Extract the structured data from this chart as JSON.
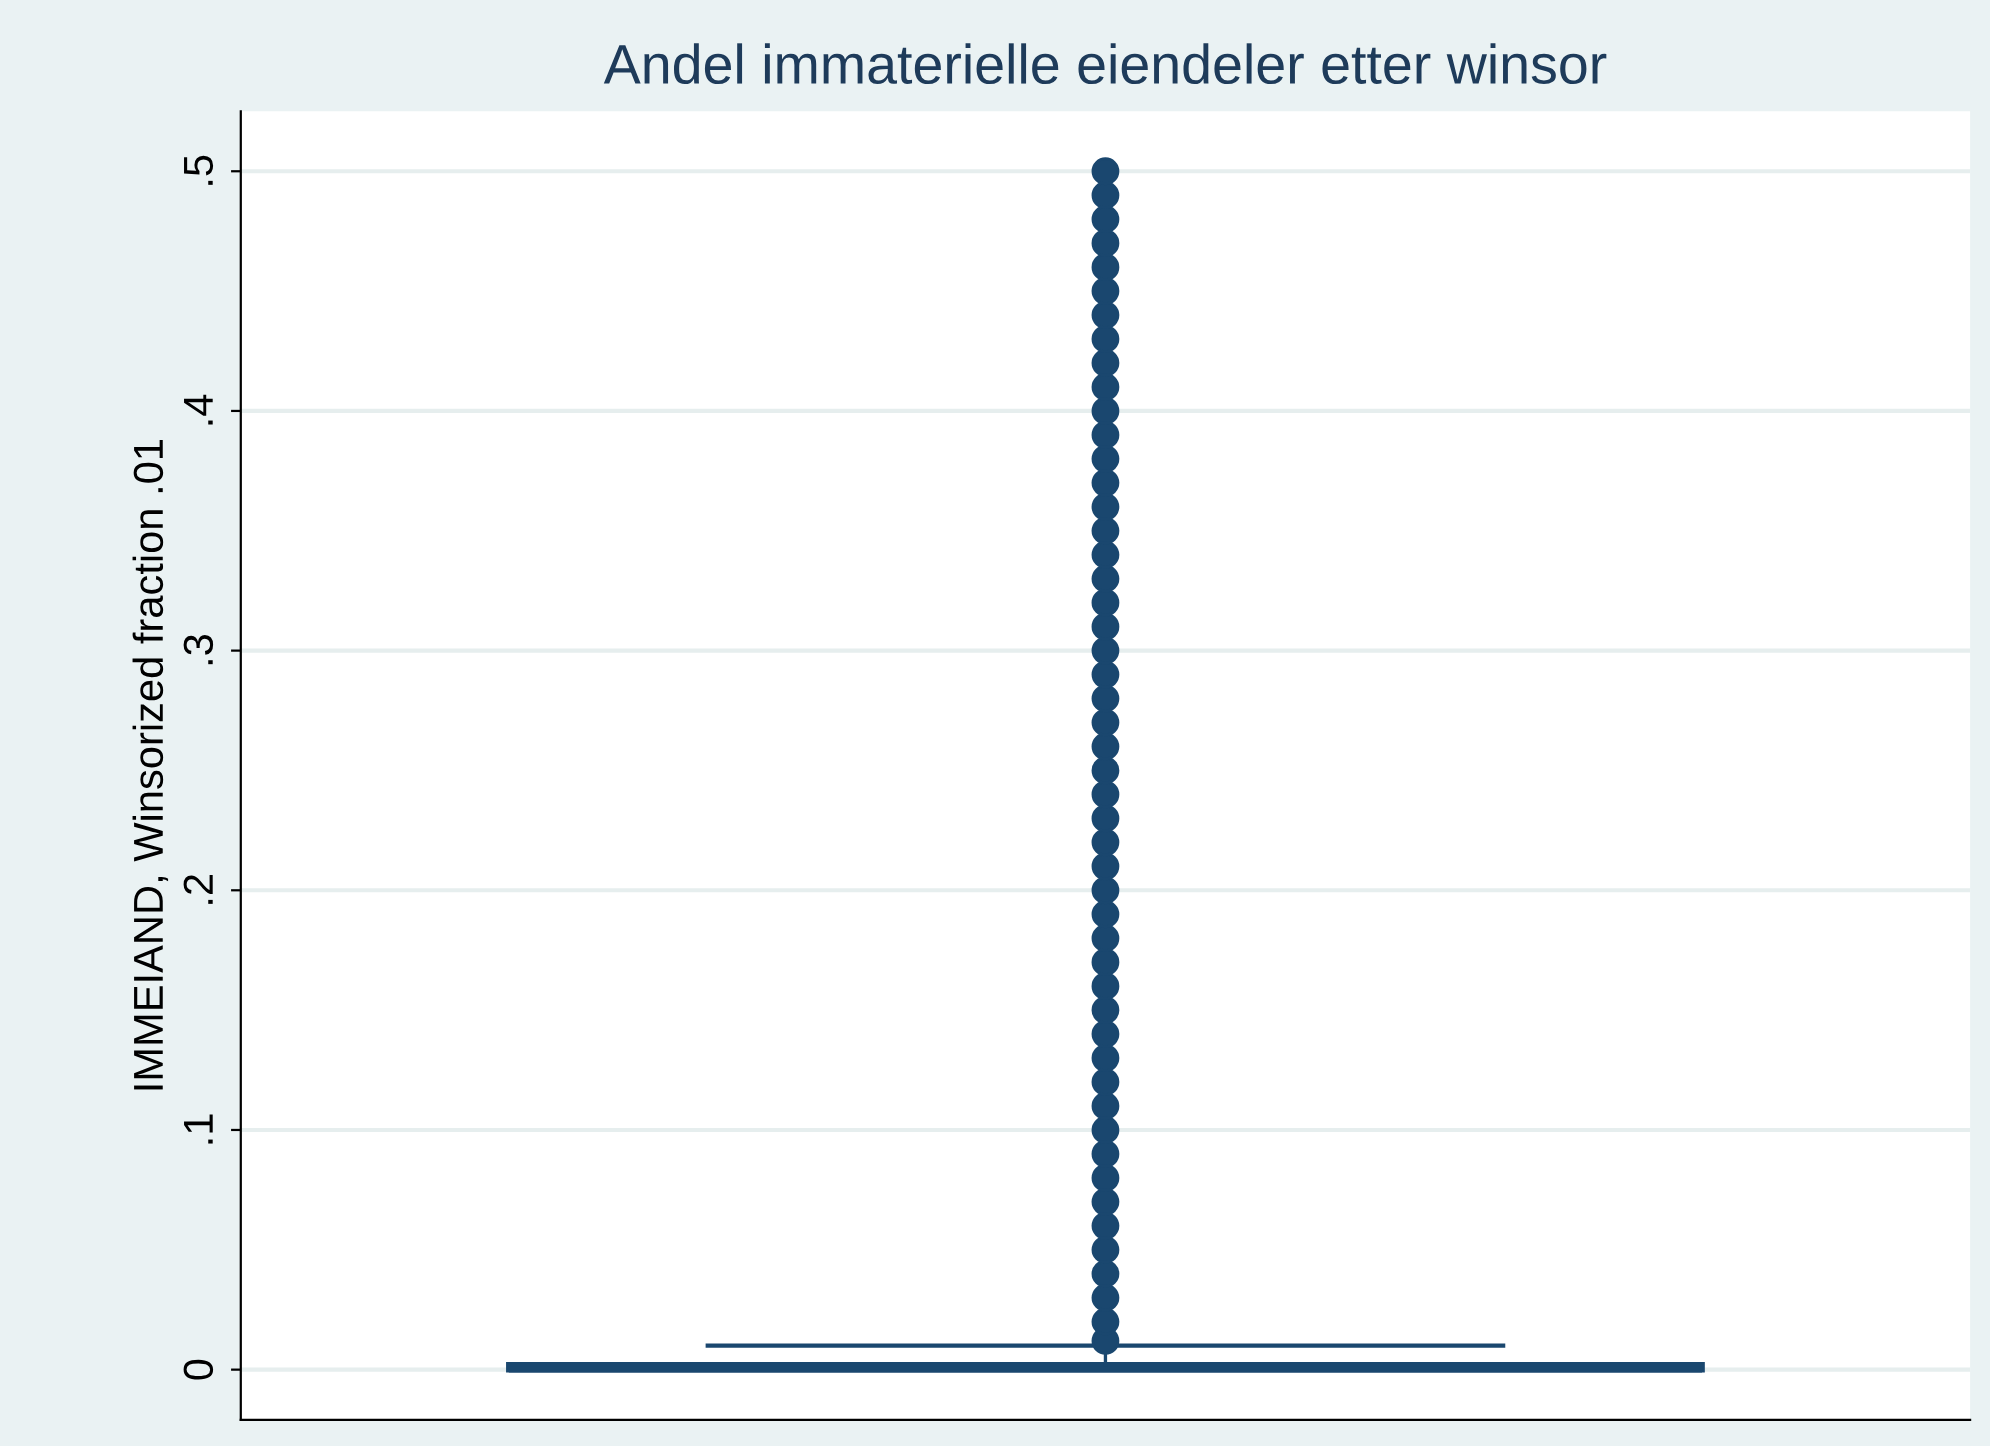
{
  "chart_data": {
    "type": "box",
    "title": "Andel immaterielle eiendeler etter winsor",
    "ylabel": "IMMEIAND, Winsorized fraction .01",
    "categories": [
      null
    ],
    "color": "#1a476f",
    "boxes": [
      {
        "low": 0,
        "q1": 0,
        "median": 0,
        "q3": 0.002,
        "high": 0.01,
        "outliers": [
          0.012,
          0.02,
          0.03,
          0.04,
          0.05,
          0.06,
          0.07,
          0.08,
          0.09,
          0.1,
          0.11,
          0.12,
          0.13,
          0.14,
          0.15,
          0.16,
          0.17,
          0.18,
          0.19,
          0.2,
          0.21,
          0.22,
          0.23,
          0.24,
          0.25,
          0.26,
          0.27,
          0.28,
          0.29,
          0.3,
          0.31,
          0.32,
          0.33,
          0.34,
          0.35,
          0.36,
          0.37,
          0.38,
          0.39,
          0.4,
          0.41,
          0.42,
          0.43,
          0.44,
          0.45,
          0.46,
          0.47,
          0.48,
          0.49,
          0.5
        ]
      }
    ],
    "ylim": [
      -0.021,
      0.525
    ],
    "yticks": [
      {
        "value": 0,
        "label": "0"
      },
      {
        "value": 0.1,
        "label": ".1"
      },
      {
        "value": 0.2,
        "label": ".2"
      },
      {
        "value": 0.3,
        "label": ".3"
      },
      {
        "value": 0.4,
        "label": ".4"
      },
      {
        "value": 0.5,
        "label": ".5"
      }
    ],
    "grid": "y",
    "marker": "circle"
  }
}
